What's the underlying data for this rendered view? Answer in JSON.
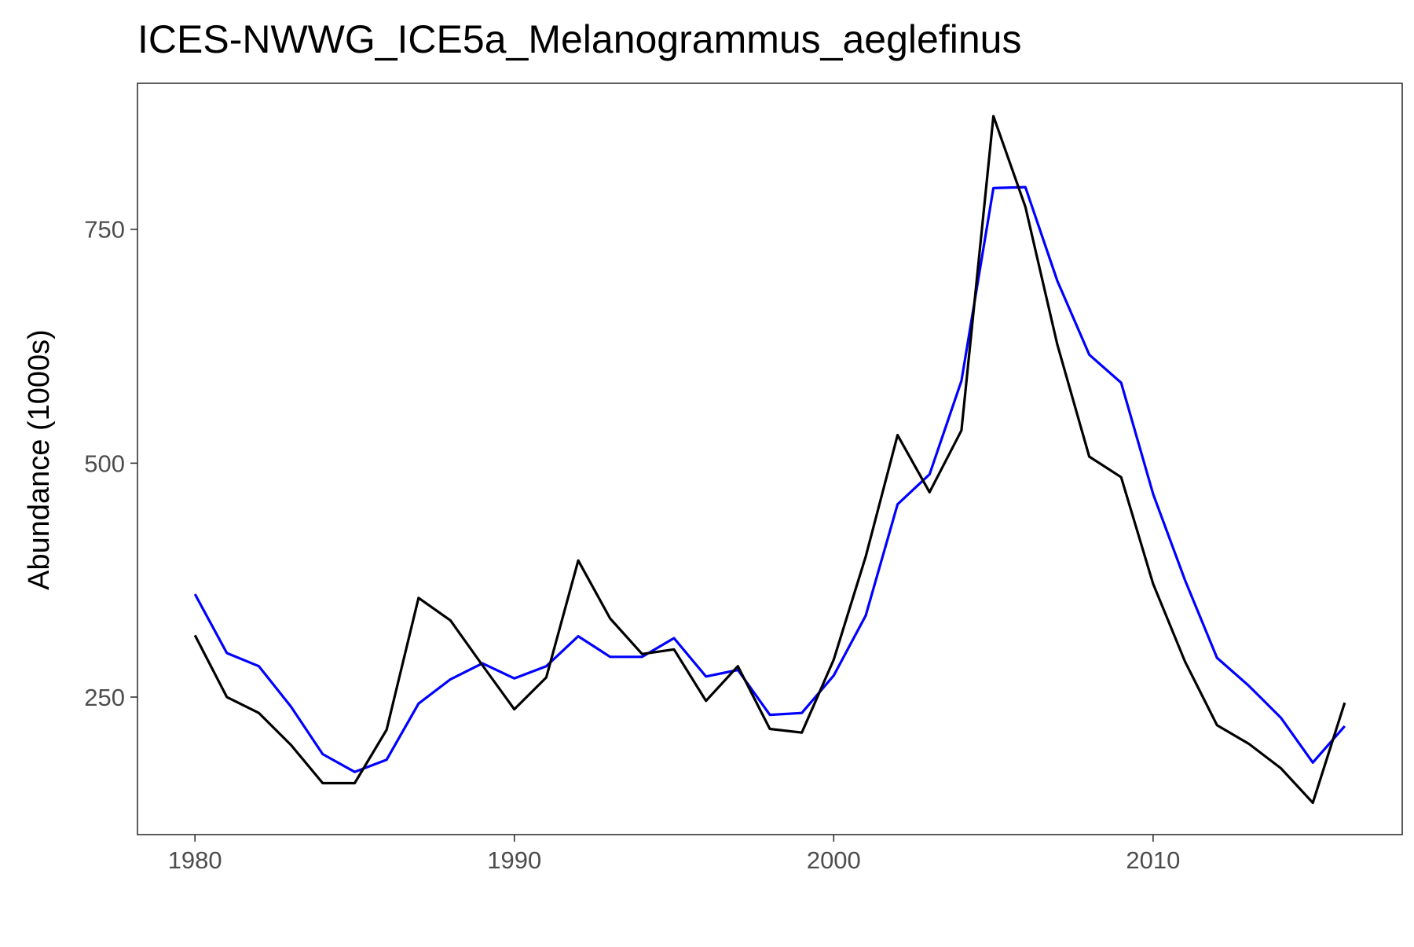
{
  "chart_data": {
    "type": "line",
    "title": "ICES-NWWG_ICE5a_Melanogrammus_aeglefinus",
    "xlabel": "",
    "ylabel": "Abundance (1000s)",
    "xlim": [
      1978.2,
      2017.8
    ],
    "ylim": [
      103,
      906
    ],
    "x_ticks": [
      1980,
      1990,
      2000,
      2010
    ],
    "y_ticks": [
      250,
      500,
      750
    ],
    "grid": false,
    "legend": "none",
    "x": [
      1980,
      1981,
      1982,
      1983,
      1984,
      1985,
      1986,
      1987,
      1988,
      1989,
      1990,
      1991,
      1992,
      1993,
      1994,
      1995,
      1996,
      1997,
      1998,
      1999,
      2000,
      2001,
      2002,
      2003,
      2004,
      2005,
      2006,
      2007,
      2008,
      2009,
      2010,
      2011,
      2012,
      2013,
      2014,
      2015,
      2016
    ],
    "series": [
      {
        "color": "#0000ff",
        "values": [
          360,
          297,
          283,
          240,
          189,
          170,
          183,
          243,
          269,
          286,
          270,
          283,
          315,
          293,
          293,
          313,
          272,
          279,
          231,
          233,
          273,
          337,
          456,
          488,
          588,
          794,
          795,
          695,
          616,
          586,
          467,
          375,
          292,
          262,
          228,
          180,
          219
        ]
      },
      {
        "color": "#000000",
        "values": [
          316,
          250,
          233,
          199,
          158,
          158,
          215,
          356,
          332,
          284,
          237,
          271,
          396,
          334,
          296,
          301,
          246,
          283,
          216,
          212,
          290,
          400,
          530,
          469,
          535,
          871,
          774,
          627,
          507,
          485,
          371,
          288,
          220,
          200,
          174,
          137,
          244
        ]
      }
    ]
  }
}
